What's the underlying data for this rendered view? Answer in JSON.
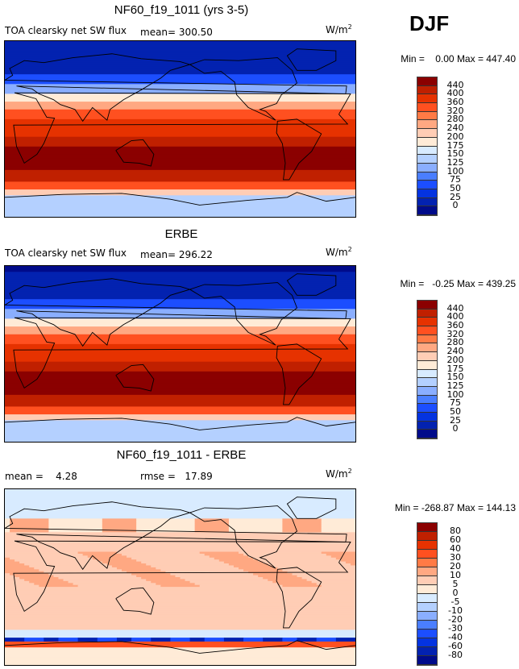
{
  "season": "DJF",
  "colors": [
    "#000b8a",
    "#0322b0",
    "#0433e0",
    "#1c4eff",
    "#4a7eff",
    "#8aaeff",
    "#b4d0ff",
    "#d8ebff",
    "#ffebd7",
    "#ffcdb5",
    "#ffa882",
    "#ff7a45",
    "#ff5020",
    "#e63200",
    "#c02000",
    "#8b0000"
  ],
  "chart_data": [
    {
      "type": "heatmap",
      "title": "NF60_f19_1011 (yrs 3-5)",
      "variable": "TOA clearsky net SW flux",
      "mean_label": "mean=",
      "mean": "300.50",
      "units": "W/m",
      "units_sup": "2",
      "min_label": "Min =",
      "min": "0.00",
      "max_label": "Max =",
      "max": "447.40",
      "levels": [
        "440",
        "400",
        "360",
        "320",
        "280",
        "240",
        "200",
        "175",
        "150",
        "125",
        "100",
        "75",
        "50",
        "25",
        "0"
      ]
    },
    {
      "type": "heatmap",
      "title": "ERBE",
      "variable": "TOA clearsky net SW flux",
      "mean_label": "mean=",
      "mean": "296.22",
      "units": "W/m",
      "units_sup": "2",
      "min_label": "Min =",
      "min": "-0.25",
      "max_label": "Max =",
      "max": "439.25",
      "levels": [
        "440",
        "400",
        "360",
        "320",
        "280",
        "240",
        "200",
        "175",
        "150",
        "125",
        "100",
        "75",
        "50",
        "25",
        "0"
      ]
    },
    {
      "type": "heatmap",
      "title": "NF60_f19_1011 - ERBE",
      "mean_label": "mean =",
      "mean": "4.28",
      "rmse_label": "rmse =",
      "rmse": "17.89",
      "units": "W/m",
      "units_sup": "2",
      "min_label": "Min =",
      "min": "-268.87",
      "max_label": "Max =",
      "max": "144.13",
      "levels": [
        "80",
        "60",
        "40",
        "30",
        "20",
        "10",
        "5",
        "0",
        "-5",
        "-10",
        "-20",
        "-30",
        "-40",
        "-60",
        "-80"
      ]
    }
  ]
}
